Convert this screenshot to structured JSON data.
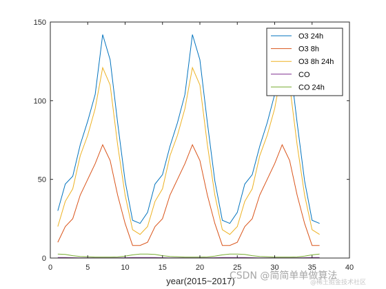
{
  "chart_data": {
    "type": "line",
    "title": "",
    "xlabel": "year(2015~2017)",
    "ylabel": "",
    "xlim": [
      0,
      40
    ],
    "ylim": [
      0,
      150
    ],
    "xticks": [
      0,
      5,
      10,
      15,
      20,
      25,
      30,
      35,
      40
    ],
    "yticks": [
      0,
      50,
      100,
      150
    ],
    "grid": false,
    "legend_position": "top-right",
    "x": [
      1,
      2,
      3,
      4,
      5,
      6,
      7,
      8,
      9,
      10,
      11,
      12,
      13,
      14,
      15,
      16,
      17,
      18,
      19,
      20,
      21,
      22,
      23,
      24,
      25,
      26,
      27,
      28,
      29,
      30,
      31,
      32,
      33,
      34,
      35,
      36
    ],
    "series": [
      {
        "name": "O3 24h",
        "color": "#0072bd",
        "values": [
          30,
          47,
          52,
          72,
          87,
          104,
          142,
          126,
          86,
          49,
          24,
          22,
          29,
          47,
          53,
          71,
          86,
          104,
          142,
          126,
          86,
          49,
          24,
          22,
          29,
          47,
          53,
          71,
          86,
          104,
          142,
          126,
          86,
          49,
          24,
          22
        ]
      },
      {
        "name": "O3 8h",
        "color": "#d95319",
        "values": [
          10,
          20,
          25,
          40,
          50,
          60,
          72,
          62,
          40,
          22,
          8,
          8,
          10,
          20,
          25,
          40,
          50,
          60,
          72,
          62,
          40,
          22,
          8,
          8,
          10,
          20,
          25,
          40,
          50,
          60,
          72,
          62,
          40,
          22,
          8,
          8
        ]
      },
      {
        "name": "O3 8h 24h",
        "color": "#edb120",
        "values": [
          20,
          36,
          44,
          65,
          78,
          95,
          121,
          110,
          72,
          40,
          18,
          15,
          20,
          36,
          44,
          65,
          78,
          95,
          121,
          110,
          72,
          40,
          18,
          15,
          20,
          36,
          44,
          65,
          78,
          95,
          121,
          110,
          72,
          40,
          18,
          15
        ]
      },
      {
        "name": "CO",
        "color": "#7e2f8e",
        "values": [
          0.3,
          0.3,
          0.2,
          0.1,
          0.1,
          0.1,
          0.1,
          0.1,
          0.1,
          0.2,
          0.3,
          0.3,
          0.3,
          0.3,
          0.2,
          0.1,
          0.1,
          0.1,
          0.1,
          0.1,
          0.1,
          0.2,
          0.3,
          0.3,
          0.3,
          0.3,
          0.2,
          0.1,
          0.1,
          0.1,
          0.1,
          0.1,
          0.1,
          0.2,
          0.3,
          0.3
        ]
      },
      {
        "name": "CO 24h",
        "color": "#77ac30",
        "values": [
          2.5,
          2.3,
          1.5,
          1.0,
          0.8,
          0.6,
          0.6,
          0.6,
          0.7,
          1.2,
          2.0,
          2.5,
          2.5,
          2.3,
          1.5,
          1.0,
          0.8,
          0.6,
          0.6,
          0.6,
          0.7,
          1.2,
          2.0,
          2.5,
          2.5,
          2.3,
          1.5,
          1.0,
          0.8,
          0.6,
          0.6,
          0.6,
          0.7,
          1.2,
          2.0,
          2.5
        ]
      }
    ]
  },
  "watermark": {
    "main": "CSDN @简简单单做算法",
    "sub": "@稀土掘金技术社区"
  }
}
